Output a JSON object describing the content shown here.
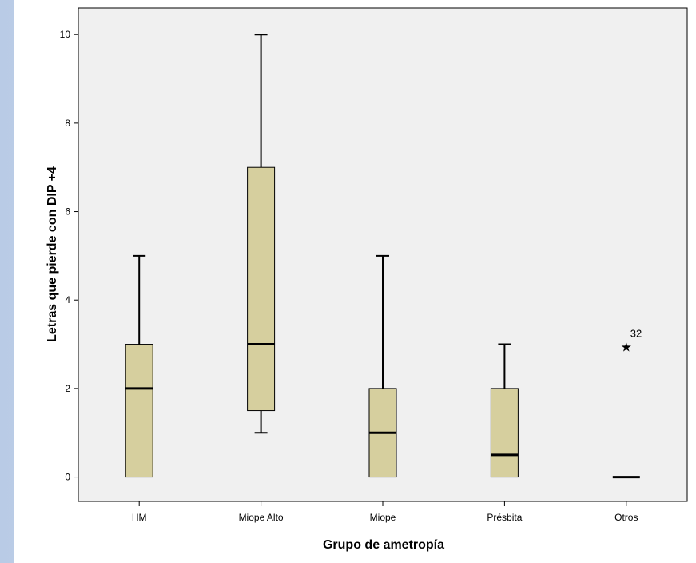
{
  "chart_data": {
    "type": "boxplot",
    "xlabel": "Grupo de ametropía",
    "ylabel": "Letras que pierde con DIP +4",
    "ylim": [
      -0.55,
      10.6
    ],
    "yticks": [
      0,
      2,
      4,
      6,
      8,
      10
    ],
    "grid": false,
    "colors": {
      "box_fill": "#d6cf9e",
      "box_stroke": "#000000",
      "plot_bg": "#f0f0f0"
    },
    "groups": [
      {
        "category": "HM",
        "min": 0,
        "q1": 0,
        "median": 2,
        "q3": 3,
        "max": 5,
        "outliers": []
      },
      {
        "category": "Miope Alto",
        "min": 1,
        "q1": 1.5,
        "median": 3,
        "q3": 7,
        "max": 10,
        "outliers": []
      },
      {
        "category": "Miope",
        "min": 0,
        "q1": 0,
        "median": 1,
        "q3": 2,
        "max": 5,
        "outliers": []
      },
      {
        "category": "Présbita",
        "min": 0,
        "q1": 0,
        "median": 0.5,
        "q3": 2,
        "max": 3,
        "outliers": []
      },
      {
        "category": "Otros",
        "min": 0,
        "q1": 0,
        "median": 0,
        "q3": 0,
        "max": 0,
        "outliers": [
          {
            "value": 3,
            "label": "32",
            "marker": "star"
          }
        ]
      }
    ]
  }
}
